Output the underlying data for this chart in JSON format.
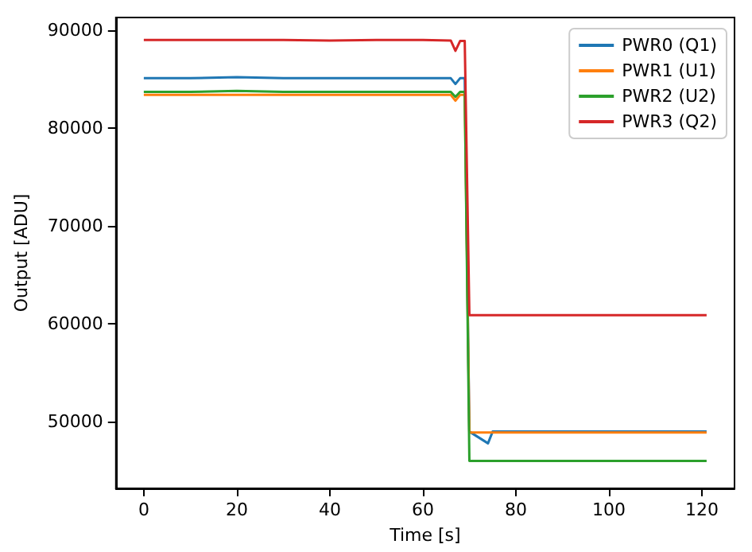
{
  "chart_data": {
    "type": "line",
    "xlabel": "Time [s]",
    "ylabel": "Output [ADU]",
    "x": [
      0,
      10,
      20,
      30,
      40,
      50,
      60,
      66,
      67,
      68,
      69,
      70,
      74,
      75,
      80,
      90,
      100,
      110,
      121
    ],
    "series": [
      {
        "name": "PWR0 (Q1)",
        "color": "#1f77b4",
        "values": [
          85100,
          85100,
          85200,
          85100,
          85100,
          85100,
          85100,
          85100,
          84500,
          85100,
          85100,
          49000,
          47800,
          49000,
          49000,
          49000,
          49000,
          49000,
          49000
        ]
      },
      {
        "name": "PWR1 (U1)",
        "color": "#ff7f0e",
        "values": [
          83400,
          83400,
          83400,
          83400,
          83400,
          83400,
          83400,
          83400,
          82800,
          83400,
          83400,
          48900,
          48900,
          48900,
          48900,
          48900,
          48900,
          48900,
          48900
        ]
      },
      {
        "name": "PWR2 (U2)",
        "color": "#2ca02c",
        "values": [
          83700,
          83700,
          83800,
          83700,
          83700,
          83700,
          83700,
          83700,
          83200,
          83700,
          83700,
          46000,
          46000,
          46000,
          46000,
          46000,
          46000,
          46000,
          46000
        ]
      },
      {
        "name": "PWR3 (Q2)",
        "color": "#d62728",
        "values": [
          89000,
          89000,
          89000,
          89000,
          88950,
          89000,
          89000,
          88950,
          87900,
          88900,
          88900,
          60900,
          60900,
          60900,
          60900,
          60900,
          60900,
          60900,
          60900
        ]
      }
    ],
    "xlim": [
      -6,
      127
    ],
    "ylim": [
      43200,
      91300
    ],
    "xticks": [
      0,
      20,
      40,
      60,
      80,
      100,
      120
    ],
    "yticks": [
      50000,
      60000,
      70000,
      80000,
      90000
    ],
    "grid": false,
    "legend": "top right",
    "marker": "none",
    "line_style": "solid"
  }
}
